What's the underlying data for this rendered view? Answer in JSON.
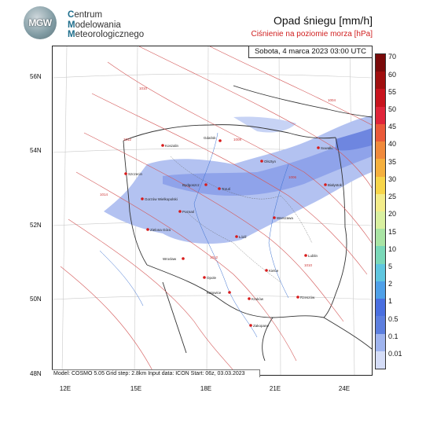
{
  "logo": {
    "badge": "MGW",
    "line1_initial": "C",
    "line1_rest": "entrum",
    "line2_initial": "M",
    "line2_rest": "odelowania",
    "line3_initial": "M",
    "line3_rest": "eteorologicznego"
  },
  "title": "Opad śniegu [mm/h]",
  "subtitle": "Ciśnienie na poziomie morza [hPa]",
  "date": "Sobota, 4 marca 2023 03:00 UTC",
  "info": "Model: COSMO 5.05  Grid step: 2.8km  Input data: ICON  Start: 06z, 03.03.2023",
  "lat_ticks": [
    "56N",
    "54N",
    "52N",
    "50N",
    "48N"
  ],
  "lon_ticks": [
    "12E",
    "15E",
    "18E",
    "21E",
    "24E"
  ],
  "colorbar": {
    "labels": [
      "70",
      "60",
      "55",
      "50",
      "45",
      "40",
      "35",
      "30",
      "25",
      "20",
      "15",
      "10",
      "5",
      "2",
      "1",
      "0.5",
      "0.1",
      "0.01"
    ],
    "colors": [
      "#7a0a0a",
      "#a00f0f",
      "#c8141e",
      "#e0253a",
      "#ea5a3a",
      "#f08a3c",
      "#f5b03e",
      "#f7d54a",
      "#f3ec8a",
      "#d9f0a0",
      "#a9e4a4",
      "#7ad8b8",
      "#5fc6df",
      "#4fa0e8",
      "#4a6fe0",
      "#5d7fdf",
      "#9fb4ee",
      "#d5ddf7"
    ]
  },
  "cities": [
    {
      "name": "Gdańsk"
    },
    {
      "name": "Koszalin"
    },
    {
      "name": "Olsztyn"
    },
    {
      "name": "Suwałki"
    },
    {
      "name": "Szczecin"
    },
    {
      "name": "Bydgoszcz"
    },
    {
      "name": "Toruń"
    },
    {
      "name": "Białystok"
    },
    {
      "name": "Gorzów Wielkopolski"
    },
    {
      "name": "Poznań"
    },
    {
      "name": "Warszawa"
    },
    {
      "name": "Zielona Góra"
    },
    {
      "name": "Łódź"
    },
    {
      "name": "Lublin"
    },
    {
      "name": "Wrocław"
    },
    {
      "name": "Kielce"
    },
    {
      "name": "Opole"
    },
    {
      "name": "Katowice"
    },
    {
      "name": "Rzeszów"
    },
    {
      "name": "Kraków"
    },
    {
      "name": "Zakopane"
    }
  ]
}
